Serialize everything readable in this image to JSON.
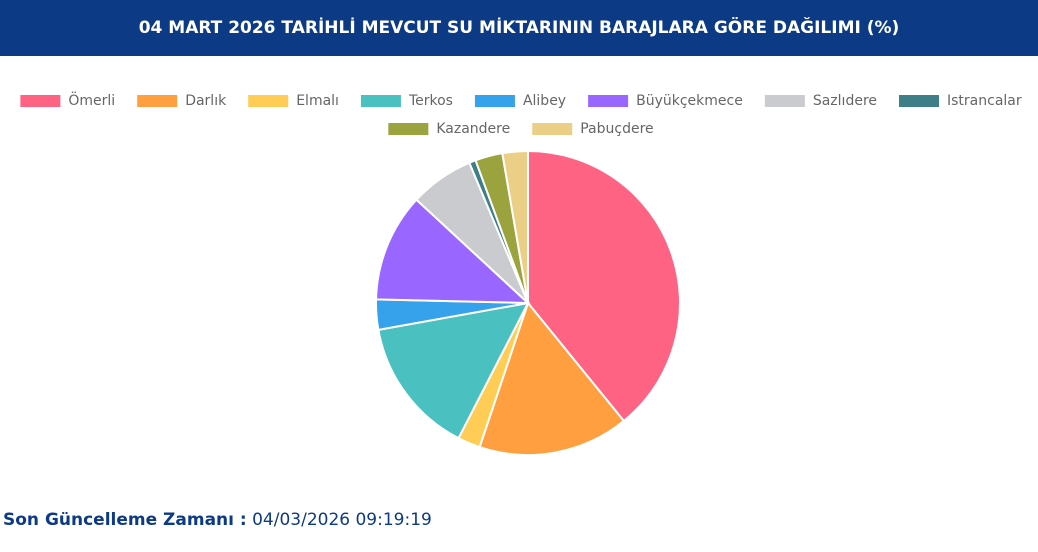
{
  "chart_data": {
    "type": "pie",
    "title": "04 MART 2026 TARİHLİ MEVCUT SU MİKTARININ BARAJLARA GÖRE DAĞILIMI (%)",
    "categories": [
      "Ömerli",
      "Darlık",
      "Elmalı",
      "Terkos",
      "Alibey",
      "Büyükçekmece",
      "Sazlıdere",
      "Istrancalar",
      "Kazandere",
      "Pabuçdere"
    ],
    "values": [
      39.1,
      16.0,
      2.4,
      14.6,
      3.2,
      11.5,
      6.8,
      0.7,
      2.9,
      2.7
    ],
    "colors": [
      "#ff6384",
      "#ff9f40",
      "#ffcd56",
      "#4bc0c0",
      "#36a2eb",
      "#9966ff",
      "#c9cbcf",
      "#3e7f87",
      "#9aa33d",
      "#ebcf86"
    ],
    "legend": "top"
  },
  "footer": {
    "label": "Son Güncelleme Zamanı :",
    "value": "04/03/2026 09:19:19"
  }
}
